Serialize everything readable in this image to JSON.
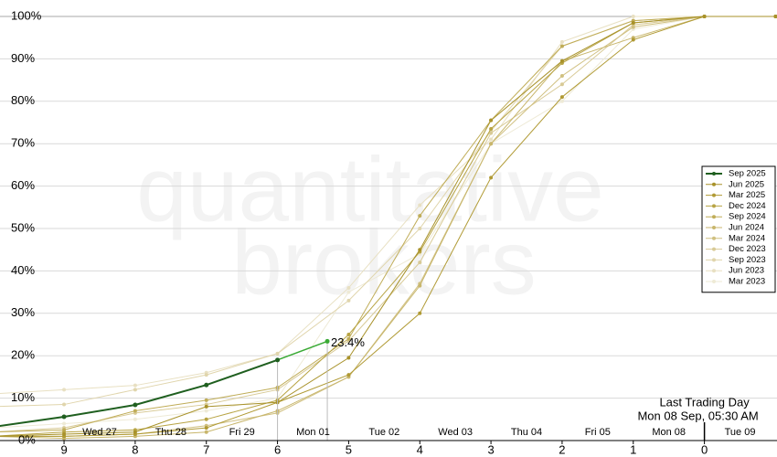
{
  "chart_data": {
    "type": "line",
    "watermark": [
      "quantitative",
      "brokers"
    ],
    "x": [
      10,
      9,
      8,
      7,
      6,
      5,
      4,
      3,
      2,
      1,
      0,
      -1
    ],
    "xlim": [
      9.9,
      -1.02
    ],
    "xticks": [
      9,
      8,
      7,
      6,
      5,
      4,
      3,
      2,
      1,
      0
    ],
    "date_labels": [
      "Wed 27",
      "Thu 28",
      "Fri 29",
      "Mon 01",
      "Tue 02",
      "Wed 03",
      "Thu 04",
      "Fri 05",
      "Mon 08",
      "Tue 09"
    ],
    "ylim": [
      0,
      100
    ],
    "yticks": [
      {
        "value": 0,
        "label": "0%"
      },
      {
        "value": 10,
        "label": "10%"
      },
      {
        "value": 20,
        "label": "20%"
      },
      {
        "value": 30,
        "label": "30%"
      },
      {
        "value": 40,
        "label": "40%"
      },
      {
        "value": 50,
        "label": "50%"
      },
      {
        "value": 60,
        "label": "60%"
      },
      {
        "value": 70,
        "label": "70%"
      },
      {
        "value": 80,
        "label": "80%"
      },
      {
        "value": 90,
        "label": "90%"
      },
      {
        "value": 100,
        "label": "100%"
      }
    ],
    "grid": true,
    "legend": "right",
    "last_segment_color": "#3aaa35",
    "last_trading_day": {
      "x": 0,
      "label": "Last Trading Day",
      "date": "Mon 08 Sep, 05:30 AM"
    },
    "series": [
      {
        "name": "Sep 2025",
        "color": "#1f5f1f",
        "x": [
          10,
          9,
          8,
          7,
          6,
          5.3
        ],
        "values": [
          3.2,
          5.6,
          8.4,
          13.1,
          19.0,
          23.4
        ],
        "value_labels": [
          null,
          null,
          null,
          null,
          null,
          "23.4%"
        ]
      },
      {
        "name": "Jun 2025",
        "color": "#a8922a",
        "values": [
          1,
          1.5,
          2,
          8,
          9,
          19.5,
          45,
          75.5,
          89.5,
          98.5,
          100,
          100
        ]
      },
      {
        "name": "Mar 2025",
        "color": "#b09a34",
        "values": [
          1,
          1,
          1.5,
          3,
          9,
          15.5,
          30,
          62,
          81,
          94.5,
          100,
          100
        ]
      },
      {
        "name": "Dec 2024",
        "color": "#b8a444",
        "values": [
          1,
          2,
          2.5,
          5,
          9.5,
          25,
          44.5,
          73.5,
          89,
          98.5,
          100,
          100
        ]
      },
      {
        "name": "Sep 2024",
        "color": "#c0ad58",
        "values": [
          2,
          2.5,
          7,
          9.5,
          12.5,
          24,
          53,
          75.5,
          93,
          99,
          100,
          100
        ]
      },
      {
        "name": "Jun 2024",
        "color": "#c8b66c",
        "values": [
          1,
          0.5,
          1,
          2,
          7,
          15,
          36.5,
          70,
          89.5,
          95,
          100,
          100
        ]
      },
      {
        "name": "Mar 2024",
        "color": "#d0c080",
        "values": [
          1,
          1,
          1.5,
          3.5,
          6.5,
          15,
          37,
          70,
          86,
          97.5,
          100,
          100
        ]
      },
      {
        "name": "Dec 2023",
        "color": "#d8ca96",
        "values": [
          2,
          3,
          6.5,
          8.5,
          12,
          23.5,
          42,
          72.5,
          84,
          98,
          100,
          100
        ]
      },
      {
        "name": "Sep 2023",
        "color": "#e0d5ac",
        "values": [
          8,
          8.5,
          12,
          15.5,
          20.5,
          33,
          50,
          73,
          93,
          99,
          100,
          100
        ]
      },
      {
        "name": "Jun 2023",
        "color": "#e8e0c2",
        "values": [
          11,
          12,
          13,
          16,
          20.5,
          36,
          55.5,
          71,
          94,
          100,
          100,
          100
        ]
      },
      {
        "name": "Mar 2023",
        "color": "#eeead6",
        "values": [
          3,
          4,
          5,
          7,
          10,
          35,
          44,
          70,
          80,
          97,
          100,
          100
        ]
      }
    ]
  }
}
